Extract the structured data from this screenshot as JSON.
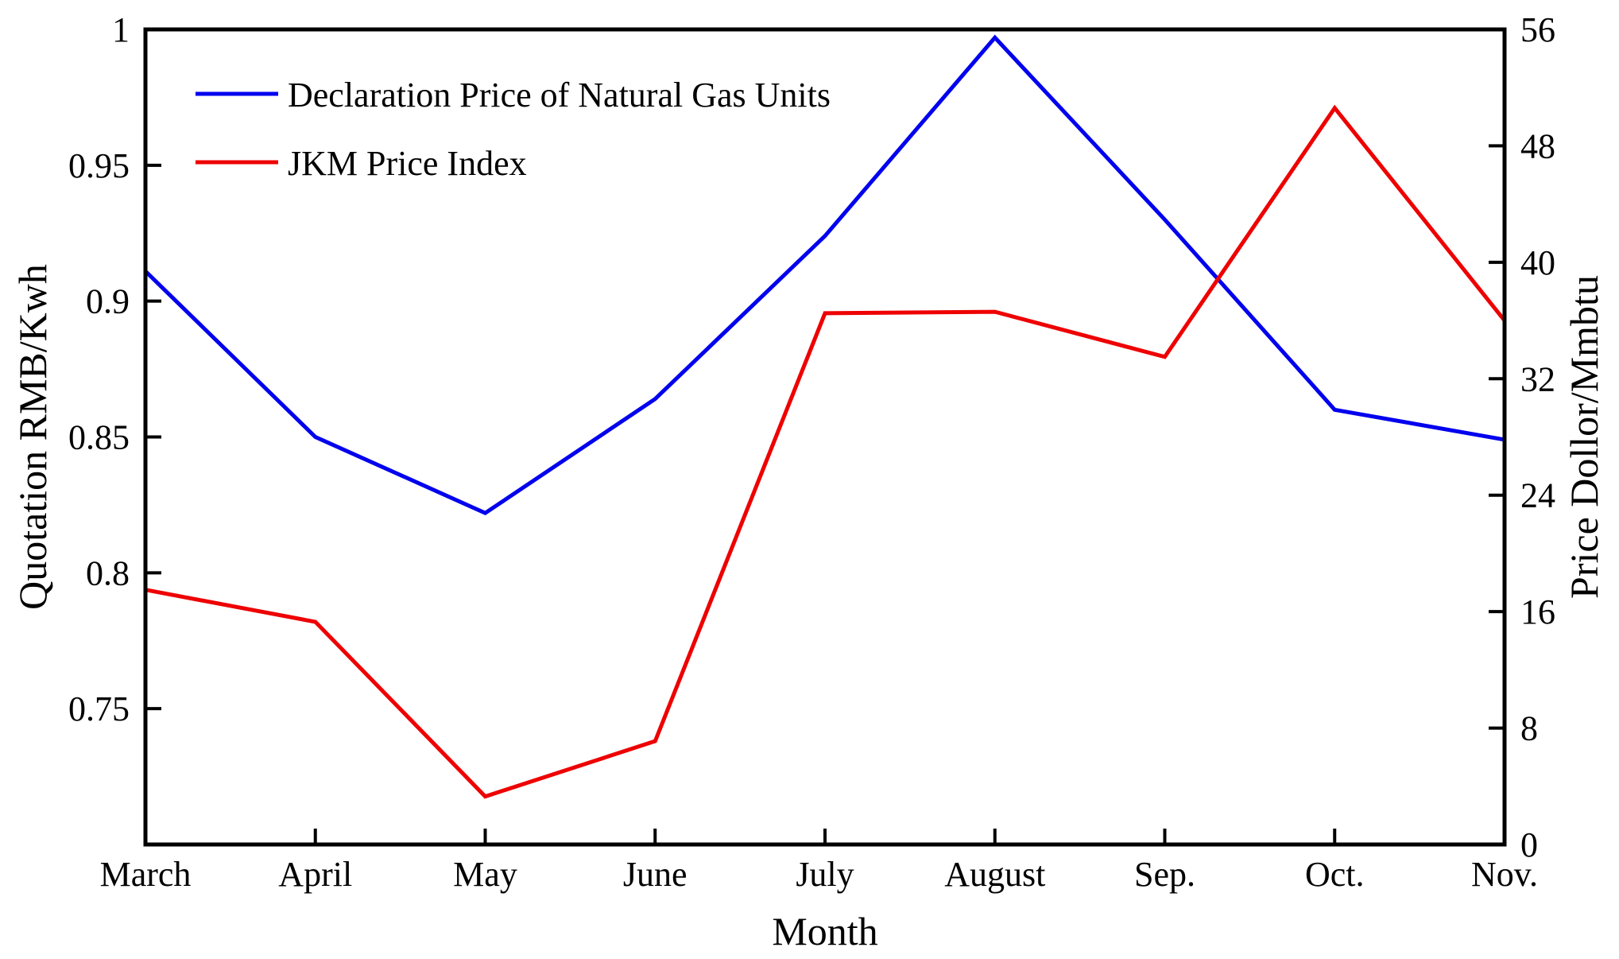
{
  "chart_data": {
    "type": "line",
    "title": "",
    "xlabel": "Month",
    "ylabel_left": "Quotation RMB/Kwh",
    "ylabel_right": "Price Dollor/Mmbtu",
    "categories": [
      "March",
      "April",
      "May",
      "June",
      "July",
      "August",
      "Sep.",
      "Oct.",
      "Nov."
    ],
    "ylim_left": [
      0.7,
      1
    ],
    "yticks_left": [
      0.75,
      0.8,
      0.85,
      0.9,
      0.95,
      1
    ],
    "ytick_labels_left": [
      "0.75",
      "0.8",
      "0.85",
      "0.9",
      "0.95",
      "1"
    ],
    "ylim_right": [
      0,
      56
    ],
    "yticks_right": [
      0,
      8,
      16,
      24,
      32,
      40,
      48,
      56
    ],
    "ytick_labels_right": [
      "0",
      "8",
      "16",
      "24",
      "32",
      "40",
      "48",
      "56"
    ],
    "grid": false,
    "legend_position": "top-left",
    "series": [
      {
        "name": "Declaration Price of Natural Gas Units",
        "axis": "left",
        "color": "#0000ee",
        "values": [
          0.911,
          0.85,
          0.822,
          0.864,
          0.924,
          0.997,
          0.93,
          0.86,
          0.849
        ]
      },
      {
        "name": "JKM Price Index",
        "axis": "right",
        "color": "#ee0000",
        "values": [
          17.5,
          15.3,
          3.3,
          7.1,
          36.5,
          36.6,
          33.5,
          50.6,
          36.0
        ]
      }
    ]
  }
}
